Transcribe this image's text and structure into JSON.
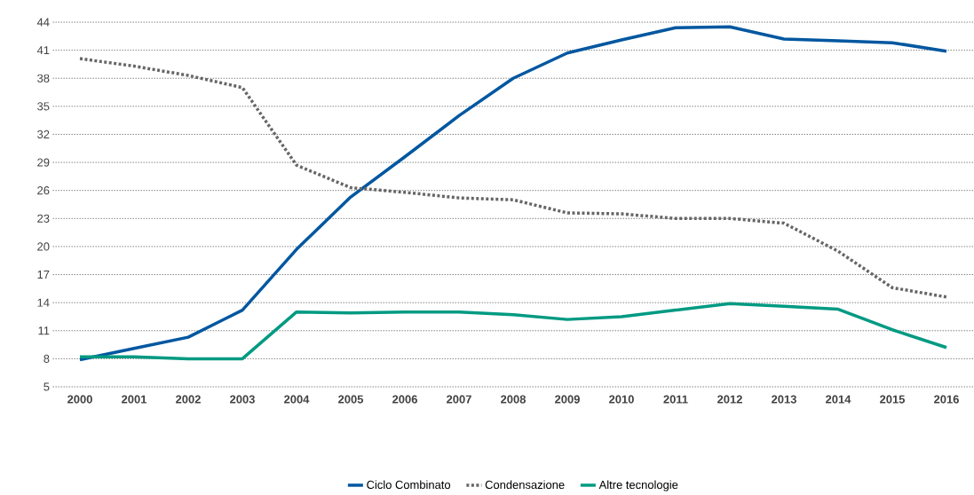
{
  "chart_data": {
    "type": "line",
    "categories": [
      "2000",
      "2001",
      "2002",
      "2003",
      "2004",
      "2005",
      "2006",
      "2007",
      "2008",
      "2009",
      "2010",
      "2011",
      "2012",
      "2013",
      "2014",
      "2015",
      "2016"
    ],
    "series": [
      {
        "name": "Ciclo Combinato",
        "color": "#0057a0",
        "line_style": "solid",
        "values": [
          7.9,
          9.1,
          10.3,
          13.2,
          19.7,
          25.3,
          29.6,
          34.0,
          38.0,
          40.7,
          42.1,
          43.4,
          43.5,
          42.2,
          42.0,
          41.8,
          40.9
        ]
      },
      {
        "name": "Condensazione",
        "color": "#666666",
        "line_style": "dotted",
        "values": [
          40.1,
          39.3,
          38.3,
          37.0,
          28.7,
          26.3,
          25.8,
          25.2,
          25.0,
          23.6,
          23.5,
          23.0,
          23.0,
          22.5,
          19.5,
          15.6,
          14.6
        ]
      },
      {
        "name": "Altre tecnologie",
        "color": "#009a82",
        "line_style": "solid",
        "values": [
          8.2,
          8.2,
          8.0,
          8.0,
          13.0,
          12.9,
          13.0,
          13.0,
          12.7,
          12.2,
          12.5,
          13.2,
          13.9,
          13.6,
          13.3,
          11.1,
          9.2
        ]
      }
    ],
    "ylim": [
      5,
      44
    ],
    "yticks": [
      5,
      8,
      11,
      14,
      17,
      20,
      23,
      26,
      29,
      32,
      35,
      38,
      41,
      44
    ],
    "grid": "y",
    "legend": "bottom",
    "marker": "none"
  }
}
